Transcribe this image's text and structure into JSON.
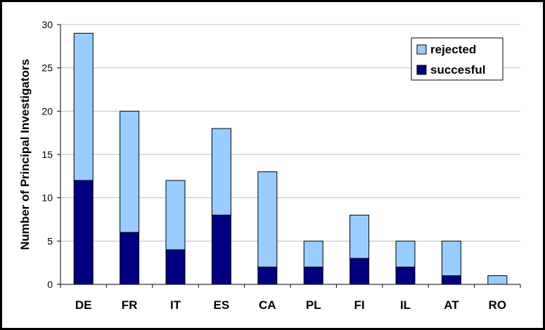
{
  "chart_data": {
    "type": "bar",
    "stacked": true,
    "categories": [
      "DE",
      "FR",
      "IT",
      "ES",
      "CA",
      "PL",
      "FI",
      "IL",
      "AT",
      "RO"
    ],
    "series": [
      {
        "name": "succesful",
        "color": "#000080",
        "values": [
          12,
          6,
          4,
          8,
          2,
          2,
          3,
          2,
          1,
          0
        ]
      },
      {
        "name": "rejected",
        "color": "#99ccff",
        "values": [
          17,
          14,
          8,
          10,
          11,
          3,
          5,
          3,
          4,
          1
        ]
      }
    ],
    "title": "",
    "xlabel": "",
    "ylabel": "Number of Principal Investigators",
    "ylim": [
      0,
      30
    ],
    "yticks": [
      0,
      5,
      10,
      15,
      20,
      25,
      30
    ],
    "grid": true,
    "legend": {
      "placement": "top-right",
      "entries": [
        "rejected",
        "succesful"
      ]
    }
  }
}
